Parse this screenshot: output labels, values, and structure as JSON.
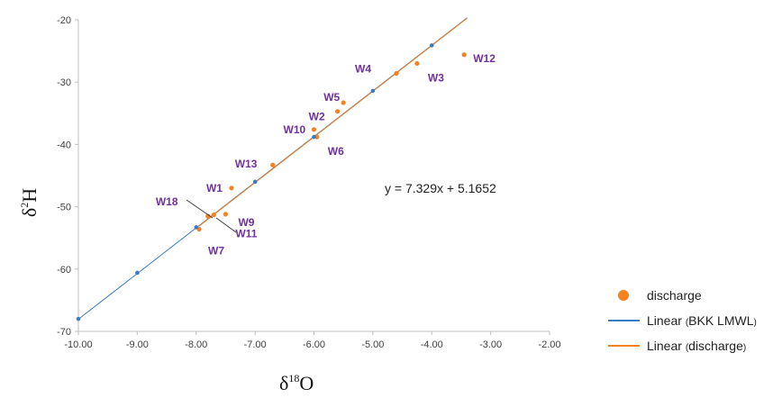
{
  "chart_data": {
    "type": "scatter",
    "xlabel": "δ18O",
    "ylabel": "δ2H",
    "xlim": [
      -10,
      -2
    ],
    "ylim": [
      -70,
      -20
    ],
    "x_ticks": [
      "-10.00",
      "-9.00",
      "-8.00",
      "-7.00",
      "-6.00",
      "-5.00",
      "-4.00",
      "-3.00",
      "-2.00"
    ],
    "y_ticks": [
      "-20",
      "-30",
      "-40",
      "-50",
      "-60",
      "-70"
    ],
    "series": [
      {
        "name": "discharge",
        "color": "#f5821f",
        "points": [
          {
            "x": -7.4,
            "y": -47.0,
            "label": "W1"
          },
          {
            "x": -5.6,
            "y": -34.7,
            "label": "W2"
          },
          {
            "x": -4.25,
            "y": -27.0,
            "label": "W3"
          },
          {
            "x": -4.6,
            "y": -28.6,
            "label": "W4"
          },
          {
            "x": -5.5,
            "y": -33.3,
            "label": "W5"
          },
          {
            "x": -5.95,
            "y": -38.8,
            "label": "W6"
          },
          {
            "x": -7.95,
            "y": -53.6,
            "label": "W7"
          },
          {
            "x": -7.5,
            "y": -51.2,
            "label": "W9"
          },
          {
            "x": -6.0,
            "y": -37.6,
            "label": "W10"
          },
          {
            "x": -7.7,
            "y": -51.3,
            "label": "W11"
          },
          {
            "x": -3.45,
            "y": -25.6,
            "label": "W12"
          },
          {
            "x": -6.7,
            "y": -43.3,
            "label": "W13"
          },
          {
            "x": -7.8,
            "y": -51.5,
            "label": "W18"
          }
        ]
      },
      {
        "name": "BKK LMWL",
        "color": "#3a7cc4",
        "points": [
          {
            "x": -10.0,
            "y": -68.0
          },
          {
            "x": -9.0,
            "y": -60.6
          },
          {
            "x": -8.0,
            "y": -53.3
          },
          {
            "x": -7.0,
            "y": -46.0
          },
          {
            "x": -6.0,
            "y": -38.8
          },
          {
            "x": -5.0,
            "y": -31.4
          },
          {
            "x": -4.0,
            "y": -24.1
          }
        ]
      }
    ],
    "trendlines": [
      {
        "name": "BKK LMWL",
        "color": "#3a7cc4",
        "slope": 7.33,
        "intercept": 5.25,
        "x_range": [
          -10.0,
          -3.4
        ]
      },
      {
        "name": "discharge",
        "color": "#f5821f",
        "slope": 7.329,
        "intercept": 5.1652,
        "x_range": [
          -7.95,
          -3.4
        ]
      }
    ],
    "equation": "y = 7.329x + 5.1652",
    "legend": {
      "position": "bottom-right",
      "items": [
        {
          "text": "discharge",
          "kind": "marker",
          "color": "#f5821f"
        },
        {
          "prefix": "Linear ",
          "paren_open": "(",
          "text": "BKK LMWL",
          "paren_close": ")",
          "kind": "line",
          "color": "#3a7cc4"
        },
        {
          "prefix": "Linear ",
          "paren_open": "(",
          "text": "discharge",
          "paren_close": ")",
          "kind": "line",
          "color": "#f5821f"
        }
      ]
    },
    "axis_titles": {
      "x_main": "δ",
      "x_sup": "18",
      "x_tail": "O",
      "y_main": "δ",
      "y_sup": "2",
      "y_tail": "H"
    },
    "grid": false
  }
}
